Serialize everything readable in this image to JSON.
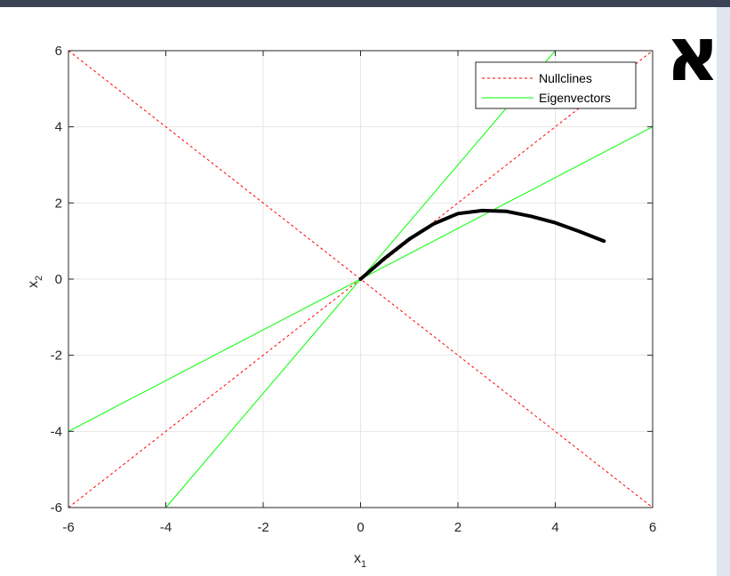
{
  "page_label": "א",
  "chart_data": {
    "type": "line",
    "title": "",
    "xlabel": "x",
    "xlabel_sub": "1",
    "ylabel": "x",
    "ylabel_sub": "2",
    "xlim": [
      -6,
      6
    ],
    "ylim": [
      -6,
      6
    ],
    "xticks": [
      -6,
      -4,
      -2,
      0,
      2,
      4,
      6
    ],
    "yticks": [
      -6,
      -4,
      -2,
      0,
      2,
      4,
      6
    ],
    "grid": true,
    "legend_position": "top-right",
    "legend": [
      {
        "label": "Nullclines",
        "color": "#ff0000",
        "style": "dashed"
      },
      {
        "label": "Eigenvectors",
        "color": "#00ff00",
        "style": "solid"
      }
    ],
    "series": [
      {
        "name": "Nullclines",
        "color": "#ff0000",
        "style": "dashed",
        "x": [
          -6,
          6
        ],
        "y": [
          6,
          -6
        ]
      },
      {
        "name": "Nullclines",
        "color": "#ff0000",
        "style": "dashed",
        "x": [
          -6,
          6
        ],
        "y": [
          -6,
          6
        ]
      },
      {
        "name": "Eigenvectors",
        "color": "#00ff00",
        "style": "solid",
        "x": [
          -4,
          4
        ],
        "y": [
          -6,
          6
        ]
      },
      {
        "name": "Eigenvectors",
        "color": "#00ff00",
        "style": "solid",
        "x": [
          -6,
          6
        ],
        "y": [
          -4,
          4
        ]
      },
      {
        "color": "#000000",
        "style": "thick",
        "x": [
          0,
          0.5,
          1.0,
          1.5,
          2.0,
          2.5,
          3.0,
          3.5,
          4.0,
          4.5,
          5.0
        ],
        "y": [
          0,
          0.55,
          1.05,
          1.45,
          1.72,
          1.8,
          1.78,
          1.65,
          1.48,
          1.25,
          1.0
        ]
      }
    ]
  }
}
